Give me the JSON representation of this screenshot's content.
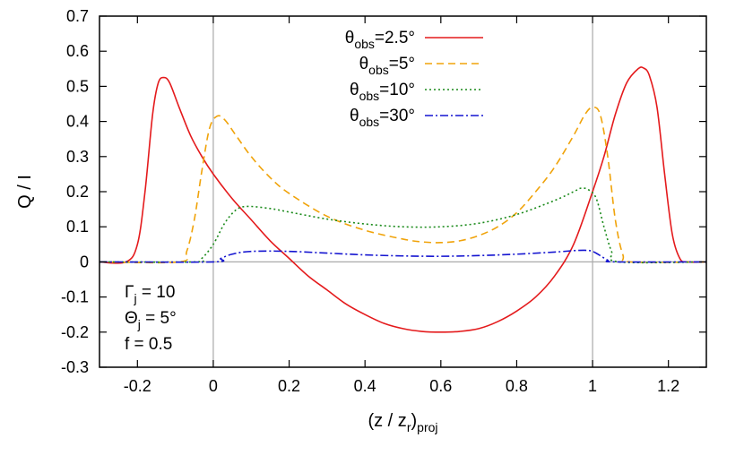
{
  "chart_data": {
    "type": "line",
    "title": "",
    "xlabel": {
      "main": "(z / z",
      "sub1": "r",
      "mid": ")",
      "sub2": "proj"
    },
    "ylabel": "Q / I",
    "xlim": [
      -0.3,
      1.3
    ],
    "ylim": [
      -0.3,
      0.7
    ],
    "xticks": [
      -0.2,
      0,
      0.2,
      0.4,
      0.6,
      0.8,
      1,
      1.2
    ],
    "xtick_labels": [
      "-0.2",
      "0",
      "0.2",
      "0.4",
      "0.6",
      "0.8",
      "1",
      "1.2"
    ],
    "yticks": [
      -0.3,
      -0.2,
      -0.1,
      0,
      0.1,
      0.2,
      0.3,
      0.4,
      0.5,
      0.6,
      0.7
    ],
    "ytick_labels": [
      "-0.3",
      "-0.2",
      "-0.1",
      "0",
      "0.1",
      "0.2",
      "0.3",
      "0.4",
      "0.5",
      "0.6",
      "0.7"
    ],
    "reference_lines": {
      "vertical_x": [
        0,
        1
      ],
      "horizontal_y": [
        0
      ]
    },
    "legend_position": "top-center",
    "series": [
      {
        "name": {
          "sym": "θ",
          "sub": "obs",
          "val": "=2.5°"
        },
        "color": "#e41a1c",
        "dash": "solid",
        "points": [
          [
            -0.3,
            0
          ],
          [
            -0.23,
            0
          ],
          [
            -0.2,
            0.05
          ],
          [
            -0.18,
            0.2
          ],
          [
            -0.16,
            0.42
          ],
          [
            -0.145,
            0.51
          ],
          [
            -0.13,
            0.525
          ],
          [
            -0.115,
            0.51
          ],
          [
            -0.09,
            0.44
          ],
          [
            -0.06,
            0.36
          ],
          [
            -0.03,
            0.3
          ],
          [
            0,
            0.25
          ],
          [
            0.05,
            0.18
          ],
          [
            0.1,
            0.12
          ],
          [
            0.15,
            0.06
          ],
          [
            0.2,
            0.01
          ],
          [
            0.25,
            -0.04
          ],
          [
            0.3,
            -0.08
          ],
          [
            0.35,
            -0.12
          ],
          [
            0.4,
            -0.15
          ],
          [
            0.45,
            -0.175
          ],
          [
            0.5,
            -0.19
          ],
          [
            0.55,
            -0.198
          ],
          [
            0.6,
            -0.2
          ],
          [
            0.65,
            -0.198
          ],
          [
            0.7,
            -0.19
          ],
          [
            0.75,
            -0.17
          ],
          [
            0.8,
            -0.14
          ],
          [
            0.85,
            -0.1
          ],
          [
            0.9,
            -0.04
          ],
          [
            0.95,
            0.05
          ],
          [
            1.0,
            0.2
          ],
          [
            1.03,
            0.3
          ],
          [
            1.06,
            0.42
          ],
          [
            1.09,
            0.51
          ],
          [
            1.12,
            0.55
          ],
          [
            1.135,
            0.552
          ],
          [
            1.15,
            0.53
          ],
          [
            1.17,
            0.44
          ],
          [
            1.19,
            0.25
          ],
          [
            1.21,
            0.08
          ],
          [
            1.23,
            0.01
          ],
          [
            1.25,
            0
          ],
          [
            1.3,
            0
          ]
        ]
      },
      {
        "name": {
          "sym": "θ",
          "sub": "obs",
          "val": "=5°"
        },
        "color": "#f0a30a",
        "dash": "8,5",
        "points": [
          [
            -0.3,
            0
          ],
          [
            -0.09,
            0
          ],
          [
            -0.07,
            0.03
          ],
          [
            -0.05,
            0.12
          ],
          [
            -0.03,
            0.26
          ],
          [
            -0.01,
            0.38
          ],
          [
            0.01,
            0.415
          ],
          [
            0.03,
            0.405
          ],
          [
            0.06,
            0.36
          ],
          [
            0.1,
            0.3
          ],
          [
            0.15,
            0.24
          ],
          [
            0.2,
            0.195
          ],
          [
            0.3,
            0.13
          ],
          [
            0.4,
            0.09
          ],
          [
            0.5,
            0.065
          ],
          [
            0.55,
            0.057
          ],
          [
            0.6,
            0.055
          ],
          [
            0.65,
            0.06
          ],
          [
            0.7,
            0.075
          ],
          [
            0.75,
            0.1
          ],
          [
            0.8,
            0.14
          ],
          [
            0.85,
            0.2
          ],
          [
            0.9,
            0.27
          ],
          [
            0.95,
            0.36
          ],
          [
            0.98,
            0.42
          ],
          [
            1.0,
            0.44
          ],
          [
            1.02,
            0.42
          ],
          [
            1.04,
            0.3
          ],
          [
            1.06,
            0.12
          ],
          [
            1.08,
            0.02
          ],
          [
            1.1,
            0
          ],
          [
            1.3,
            0
          ]
        ]
      },
      {
        "name": {
          "sym": "θ",
          "sub": "obs",
          "val": "=10°"
        },
        "color": "#1a8a1a",
        "dash": "2,3",
        "points": [
          [
            -0.3,
            0
          ],
          [
            -0.05,
            0
          ],
          [
            -0.03,
            0.01
          ],
          [
            0,
            0.05
          ],
          [
            0.03,
            0.11
          ],
          [
            0.06,
            0.148
          ],
          [
            0.09,
            0.158
          ],
          [
            0.15,
            0.152
          ],
          [
            0.2,
            0.142
          ],
          [
            0.3,
            0.122
          ],
          [
            0.4,
            0.108
          ],
          [
            0.5,
            0.1
          ],
          [
            0.6,
            0.1
          ],
          [
            0.7,
            0.11
          ],
          [
            0.8,
            0.135
          ],
          [
            0.9,
            0.175
          ],
          [
            0.95,
            0.2
          ],
          [
            0.97,
            0.21
          ],
          [
            0.99,
            0.205
          ],
          [
            1.01,
            0.18
          ],
          [
            1.03,
            0.1
          ],
          [
            1.05,
            0.03
          ],
          [
            1.07,
            0
          ],
          [
            1.3,
            0
          ]
        ]
      },
      {
        "name": {
          "sym": "θ",
          "sub": "obs",
          "val": "=30°"
        },
        "color": "#1414d0",
        "dash": "9,3,2,3",
        "points": [
          [
            -0.3,
            0
          ],
          [
            0,
            0
          ],
          [
            0.02,
            0.01
          ],
          [
            0.05,
            0.022
          ],
          [
            0.1,
            0.03
          ],
          [
            0.2,
            0.03
          ],
          [
            0.3,
            0.025
          ],
          [
            0.4,
            0.02
          ],
          [
            0.5,
            0.017
          ],
          [
            0.6,
            0.016
          ],
          [
            0.7,
            0.018
          ],
          [
            0.8,
            0.022
          ],
          [
            0.9,
            0.028
          ],
          [
            0.95,
            0.032
          ],
          [
            0.98,
            0.033
          ],
          [
            1.0,
            0.03
          ],
          [
            1.02,
            0.018
          ],
          [
            1.04,
            0.005
          ],
          [
            1.06,
            0
          ],
          [
            1.3,
            0
          ]
        ]
      }
    ],
    "parameters": [
      {
        "sym": "Γ",
        "sub": "j",
        "rest": " = 10"
      },
      {
        "sym": "Θ",
        "sub": "j",
        "rest": " = 5°"
      },
      {
        "sym": "f",
        "sub": "",
        "rest": " = 0.5"
      }
    ]
  }
}
